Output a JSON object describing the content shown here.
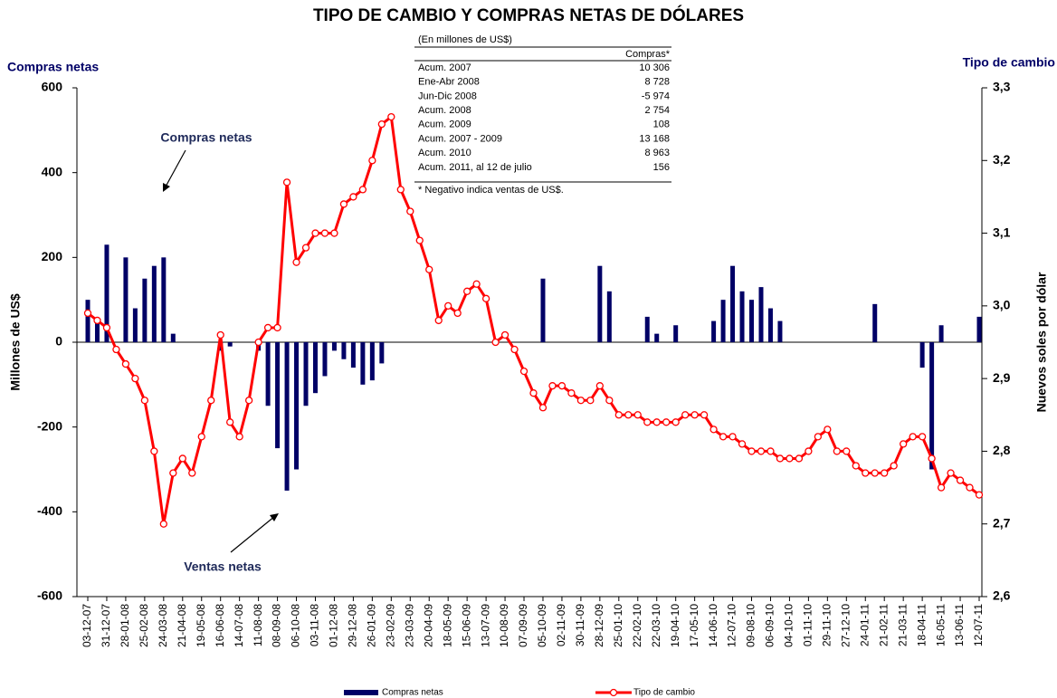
{
  "chart_data": {
    "type": "bar",
    "title": "TIPO DE CAMBIO Y COMPRAS NETAS DE DÓLARES",
    "y_axis_title": "Compras netas",
    "y2_axis_title": "Tipo de cambio",
    "y_label": "Millones de US$",
    "y2_label": "Nuevos soles por dólar",
    "annotations": [
      "Compras netas",
      "Ventas netas"
    ],
    "table": {
      "title": "(En millones de US$)",
      "header": "Compras*",
      "rows": [
        [
          "Acum. 2007",
          "10 306"
        ],
        [
          "Ene-Abr 2008",
          "8 728"
        ],
        [
          "Jun-Dic 2008",
          "-5 974"
        ],
        [
          "Acum. 2008",
          "2 754"
        ],
        [
          "Acum. 2009",
          "108"
        ],
        [
          "Acum. 2007 - 2009",
          "13 168"
        ],
        [
          "Acum. 2010",
          "8 963"
        ],
        [
          "Acum. 2011, al 12 de julio",
          "156"
        ]
      ],
      "note": "* Negativo indica ventas de US$."
    },
    "categories": [
      "03-12-07",
      null,
      "31-12-07",
      null,
      "28-01-08",
      null,
      "25-02-08",
      null,
      "24-03-08",
      null,
      "21-04-08",
      null,
      "19-05-08",
      null,
      "16-06-08",
      null,
      "14-07-08",
      null,
      "11-08-08",
      null,
      "08-09-08",
      null,
      "06-10-08",
      null,
      "03-11-08",
      null,
      "01-12-08",
      null,
      "29-12-08",
      null,
      "26-01-09",
      null,
      "23-02-09",
      null,
      "23-03-09",
      null,
      "20-04-09",
      null,
      "18-05-09",
      null,
      "15-06-09",
      null,
      "13-07-09",
      null,
      "10-08-09",
      null,
      "07-09-09",
      null,
      "05-10-09",
      null,
      "02-11-09",
      null,
      "30-11-09",
      null,
      "28-12-09",
      null,
      "25-01-10",
      null,
      "22-02-10",
      null,
      "22-03-10",
      null,
      "19-04-10",
      null,
      "17-05-10",
      null,
      "14-06-10",
      null,
      "12-07-10",
      null,
      "09-08-10",
      null,
      "06-09-10",
      null,
      "04-10-10",
      null,
      "01-11-10",
      null,
      "29-11-10",
      null,
      "27-12-10",
      null,
      "24-01-11",
      null,
      "21-02-11",
      null,
      "21-03-11",
      null,
      "18-04-11",
      null,
      "16-05-11",
      null,
      "13-06-11",
      null,
      "12-07-11"
    ],
    "series": [
      {
        "name": "Compras netas",
        "type": "bar",
        "color": "#000066",
        "values": [
          100,
          50,
          230,
          0,
          200,
          80,
          150,
          180,
          200,
          20,
          0,
          0,
          0,
          0,
          -20,
          -10,
          0,
          0,
          -20,
          -150,
          -250,
          -350,
          -300,
          -150,
          -120,
          -80,
          -20,
          -40,
          -60,
          -100,
          -90,
          -50,
          0,
          0,
          0,
          0,
          0,
          0,
          0,
          0,
          0,
          0,
          0,
          0,
          0,
          0,
          0,
          0,
          150,
          0,
          0,
          0,
          0,
          0,
          180,
          120,
          0,
          0,
          0,
          60,
          20,
          0,
          40,
          0,
          0,
          0,
          50,
          100,
          180,
          120,
          100,
          130,
          80,
          50,
          0,
          0,
          0,
          0,
          0,
          0,
          0,
          0,
          0,
          90,
          0,
          0,
          0,
          0,
          -60,
          -300,
          40,
          0,
          0,
          0,
          60
        ]
      },
      {
        "name": "Tipo de cambio",
        "type": "line",
        "axis": "y2",
        "color": "#ff0000",
        "values": [
          2.99,
          2.98,
          2.97,
          2.94,
          2.92,
          2.9,
          2.87,
          2.8,
          2.7,
          2.77,
          2.79,
          2.77,
          2.82,
          2.87,
          2.96,
          2.84,
          2.82,
          2.87,
          2.95,
          2.97,
          2.97,
          3.17,
          3.06,
          3.08,
          3.1,
          3.1,
          3.1,
          3.14,
          3.15,
          3.16,
          3.2,
          3.25,
          3.26,
          3.16,
          3.13,
          3.09,
          3.05,
          2.98,
          3.0,
          2.99,
          3.02,
          3.03,
          3.01,
          2.95,
          2.96,
          2.94,
          2.91,
          2.88,
          2.86,
          2.89,
          2.89,
          2.88,
          2.87,
          2.87,
          2.89,
          2.87,
          2.85,
          2.85,
          2.85,
          2.84,
          2.84,
          2.84,
          2.84,
          2.85,
          2.85,
          2.85,
          2.83,
          2.82,
          2.82,
          2.81,
          2.8,
          2.8,
          2.8,
          2.79,
          2.79,
          2.79,
          2.8,
          2.82,
          2.83,
          2.8,
          2.8,
          2.78,
          2.77,
          2.77,
          2.77,
          2.78,
          2.81,
          2.82,
          2.82,
          2.79,
          2.75,
          2.77,
          2.76,
          2.75,
          2.74
        ]
      }
    ],
    "ylim": [
      -600,
      600
    ],
    "yticks": [
      -600,
      -400,
      -200,
      0,
      200,
      400,
      600
    ],
    "y2lim": [
      2.6,
      3.3
    ],
    "y2ticks": [
      {
        "value": 2.6,
        "label": "2,6"
      },
      {
        "value": 2.7,
        "label": "2,7"
      },
      {
        "value": 2.8,
        "label": "2,8"
      },
      {
        "value": 2.9,
        "label": "2,9"
      },
      {
        "value": 3.0,
        "label": "3,0"
      },
      {
        "value": 3.1,
        "label": "3,1"
      },
      {
        "value": 3.2,
        "label": "3,2"
      },
      {
        "value": 3.3,
        "label": "3,3"
      }
    ],
    "grid": false,
    "legend": "bottom"
  }
}
